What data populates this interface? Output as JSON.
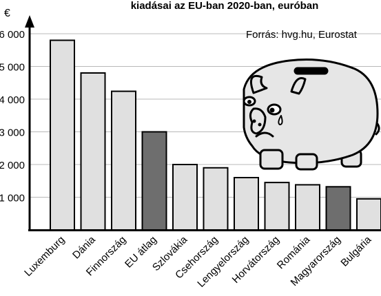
{
  "chart_data": {
    "type": "bar",
    "title": "kiadásai az EU-ban 2020-ban, euróban",
    "source": "Forrás: hvg.hu, Eurostat",
    "unit_label": "€",
    "categories": [
      "Luxemburg",
      "Dánia",
      "Finnország",
      "EU átlag",
      "Szlovákia",
      "Csehország",
      "Lengyelország",
      "Horvátország",
      "Románia",
      "Magyarország",
      "Bulgária"
    ],
    "values": [
      5800,
      4800,
      4240,
      3000,
      2000,
      1900,
      1600,
      1450,
      1380,
      1320,
      950
    ],
    "highlighted": [
      "EU átlag",
      "Magyarország"
    ],
    "yticks": [
      1000,
      2000,
      3000,
      4000,
      5000,
      6000
    ],
    "ytick_labels": [
      "1 000",
      "2 000",
      "3 000",
      "4 000",
      "5 000",
      "6 000"
    ],
    "ylim": [
      0,
      6000
    ],
    "grid": true,
    "colors": {
      "bar": "#e0e0e0",
      "highlight": "#6e6e6e",
      "grid": "#b8b8b8",
      "pig": "#e6e6e6",
      "outline": "#000000"
    },
    "decoration_icon": "piggy-bank-icon"
  }
}
